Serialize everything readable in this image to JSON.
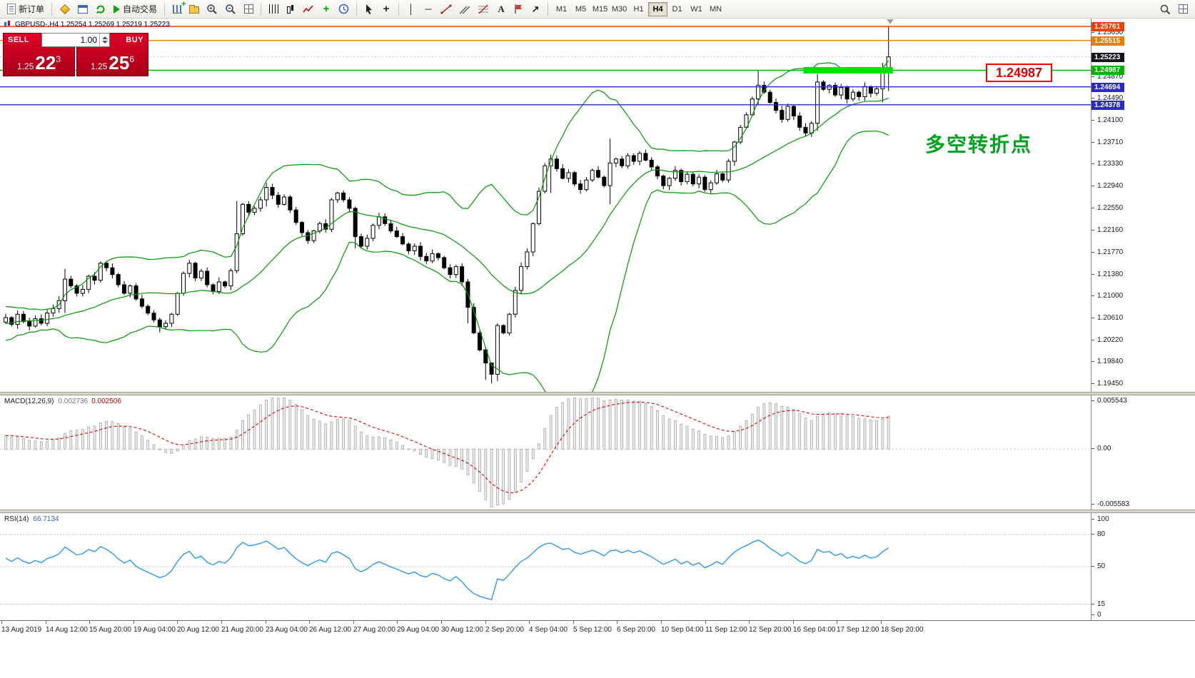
{
  "window": {
    "title": "GBPUSD-,H4"
  },
  "toolbar": {
    "new_order_label": "新订单",
    "autotrading_label": "自动交易",
    "timeframes": [
      "M1",
      "M5",
      "M15",
      "M30",
      "H1",
      "H4",
      "D1",
      "W1",
      "MN"
    ],
    "active_timeframe": "H4"
  },
  "symbol_bar": {
    "text": "GBPUSD-,H4  1.25254 1.25269 1.25219 1.25223"
  },
  "one_click": {
    "sell_label": "SELL",
    "buy_label": "BUY",
    "volume": "1.00",
    "sell_price_big": "1.25",
    "sell_price_mid": "22",
    "sell_price_sup": "3",
    "buy_price_big": "1.25",
    "buy_price_mid": "25",
    "buy_price_sup": "6"
  },
  "annotations": {
    "callout": "1.24987",
    "note": "多空转折点"
  },
  "macd_panel": {
    "name": "MACD(12,26,9)",
    "value_main": "0.002736",
    "value_signal": "0.002506",
    "axis_top": "0.005543",
    "axis_zero": "0.00",
    "axis_bottom": "-0.005583"
  },
  "rsi_panel": {
    "name": "RSI(14)",
    "value": "66.7134",
    "axis": [
      100,
      80,
      50,
      15,
      0
    ],
    "levels": [
      80,
      50,
      15
    ]
  },
  "time_axis": [
    "13 Aug 2019",
    "14 Aug 12:00",
    "15 Aug 20:00",
    "19 Aug 04:00",
    "20 Aug 12:00",
    "21 Aug 20:00",
    "23 Aug 04:00",
    "26 Aug 12:00",
    "27 Aug 20:00",
    "29 Aug 04:00",
    "30 Aug 12:00",
    "2 Sep 20:00",
    "4 Sep 04:00",
    "5 Sep 12:00",
    "6 Sep 20:00",
    "10 Sep 04:00",
    "11 Sep 12:00",
    "12 Sep 20:00",
    "16 Sep 04:00",
    "17 Sep 12:00",
    "18 Sep 20:00"
  ],
  "chart_data": {
    "type": "candlestick",
    "symbol": "GBPUSD-",
    "timeframe": "H4",
    "current_bar": {
      "open": 1.25254,
      "high": 1.25269,
      "low": 1.25219,
      "close": 1.25223
    },
    "ylim": [
      1.1931,
      1.259
    ],
    "closes_pre": [
      1.2005,
      1.203,
      1.2018,
      1.2042,
      1.2028,
      1.2052,
      1.2035,
      1.2058,
      1.204,
      1.2062,
      1.2045,
      1.2068,
      1.205,
      1.207,
      1.2055,
      1.2072,
      1.2058,
      1.2068,
      1.2052,
      1.2065
    ],
    "closes": [
      1.2062,
      1.205,
      1.2068,
      1.2055,
      1.2047,
      1.206,
      1.2052,
      1.207,
      1.2078,
      1.2092,
      1.213,
      1.2118,
      1.2105,
      1.2112,
      1.2135,
      1.2128,
      1.2158,
      1.215,
      1.2138,
      1.212,
      1.2105,
      1.2118,
      1.2095,
      1.2082,
      1.207,
      1.2058,
      1.2046,
      1.2052,
      1.2068,
      1.2105,
      1.214,
      1.2158,
      1.2132,
      1.2144,
      1.212,
      1.2108,
      1.2125,
      1.2118,
      1.2145,
      1.221,
      1.2262,
      1.2248,
      1.2255,
      1.227,
      1.2292,
      1.2278,
      1.2262,
      1.2275,
      1.2252,
      1.223,
      1.2212,
      1.2198,
      1.2215,
      1.2228,
      1.2218,
      1.227,
      1.2282,
      1.227,
      1.2255,
      1.2205,
      1.2188,
      1.2202,
      1.2225,
      1.224,
      1.2228,
      1.2215,
      1.2205,
      1.2192,
      1.218,
      1.2188,
      1.217,
      1.2162,
      1.2175,
      1.2168,
      1.215,
      1.2138,
      1.2152,
      1.2125,
      1.208,
      1.2035,
      1.2005,
      1.1982,
      1.1962,
      1.2048,
      1.2035,
      1.2068,
      1.211,
      1.2152,
      1.2178,
      1.2228,
      1.2285,
      1.233,
      1.2342,
      1.2325,
      1.2308,
      1.2318,
      1.2298,
      1.2288,
      1.2305,
      1.2322,
      1.231,
      1.2295,
      1.2335,
      1.2342,
      1.233,
      1.2348,
      1.2338,
      1.2352,
      1.234,
      1.2328,
      1.2312,
      1.2295,
      1.2308,
      1.2322,
      1.2302,
      1.2315,
      1.2298,
      1.231,
      1.2288,
      1.23,
      1.2316,
      1.2305,
      1.2338,
      1.2372,
      1.2398,
      1.242,
      1.2448,
      1.2472,
      1.246,
      1.2442,
      1.2428,
      1.2412,
      1.2435,
      1.2418,
      1.2398,
      1.2388,
      1.2405,
      1.2478,
      1.2465,
      1.2472,
      1.2455,
      1.2468,
      1.2448,
      1.246,
      1.2452,
      1.247,
      1.2458,
      1.2466,
      1.2495,
      1.25223
    ],
    "wick_overrides": {
      "10": [
        1.2148,
        1.207
      ],
      "26": [
        1.2062,
        1.2036
      ],
      "39": [
        1.2268,
        1.214
      ],
      "44": [
        1.23,
        1.2258
      ],
      "59": [
        1.2258,
        1.2184
      ],
      "77": [
        1.2158,
        1.2118
      ],
      "78": [
        1.213,
        1.2052
      ],
      "81": [
        1.201,
        1.1952
      ],
      "82": [
        1.1978,
        1.1946
      ],
      "83": [
        1.2052,
        1.195
      ],
      "92": [
        1.235,
        1.2282
      ],
      "102": [
        1.2378,
        1.2262
      ],
      "122": [
        1.2342,
        1.23
      ],
      "127": [
        1.2498,
        1.2438
      ],
      "137": [
        1.2492,
        1.2392
      ],
      "148": [
        1.2512,
        1.2442
      ],
      "149": [
        1.25761,
        1.2462
      ]
    },
    "price_axis_ticks": [
      1.2565,
      1.2487,
      1.2449,
      1.241,
      1.2371,
      1.2333,
      1.2294,
      1.2255,
      1.2216,
      1.2177,
      1.2138,
      1.21,
      1.2061,
      1.2022,
      1.1984,
      1.1945
    ],
    "level_lines": [
      {
        "name": "resistance-line-1",
        "price": 1.25761,
        "color": "#e84300"
      },
      {
        "name": "resistance-line-2",
        "price": 1.25515,
        "color": "#f07a00"
      },
      {
        "name": "pivot-line-green",
        "price": 1.24987,
        "color": "#00b400"
      },
      {
        "name": "support-line-1",
        "price": 1.24694,
        "color": "#2a2ac8"
      },
      {
        "name": "support-line-2",
        "price": 1.24378,
        "color": "#2a2ac8"
      }
    ],
    "current_price_tag": {
      "price": 1.25223,
      "bg": "#15151d"
    },
    "highlight_box": {
      "price": 1.24987,
      "start_candle": 135,
      "end_candle": 149,
      "color": "#00e000"
    },
    "indicators": {
      "bollinger": {
        "period": 20,
        "deviation": 2,
        "color": "#009a00"
      },
      "macd": {
        "fast": 12,
        "slow": 26,
        "signal": 9,
        "histogram_color": "#ececec",
        "signal_color": "#e00000"
      },
      "rsi": {
        "period": 14,
        "color": "#1e90ff"
      }
    }
  }
}
